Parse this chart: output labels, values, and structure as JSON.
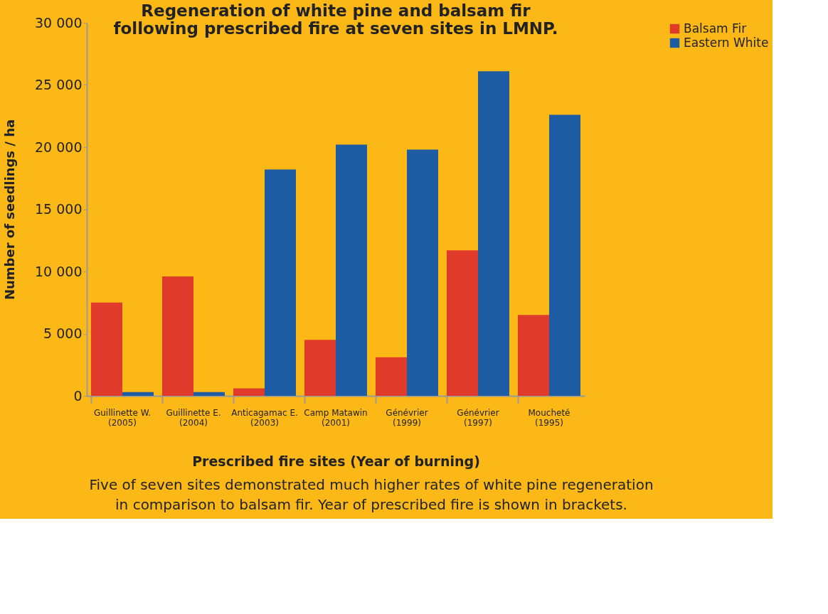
{
  "chart_data": {
    "type": "bar",
    "title": "Regeneration of white pine and balsam fir\nfollowing prescribed fire at seven sites in LMNP.",
    "xlabel": "Prescribed fire sites (Year of burning)",
    "ylabel": "Number of seedlings / ha",
    "categories": [
      "Guillinette W.\n(2005)",
      "Guillinette E.\n(2004)",
      "Anticagamac E.\n(2003)",
      "Camp Matawin\n(2001)",
      "Génévrier\n(1999)",
      "Génévrier\n(1997)",
      "Moucheté\n(1995)"
    ],
    "series": [
      {
        "name": "Balsam Fir",
        "color": "#e03a2b",
        "values": [
          7500,
          9600,
          600,
          4500,
          3100,
          11700,
          6500
        ]
      },
      {
        "name": "Eastern White",
        "color": "#1e5ca3",
        "values": [
          300,
          300,
          18200,
          20200,
          19800,
          26100,
          22600
        ]
      }
    ],
    "ylim": [
      0,
      30000
    ],
    "yticks": [
      0,
      {
        "value": 5000,
        "label": "5 000"
      },
      {
        "value": 10000,
        "label": "10 000"
      },
      {
        "value": 15000,
        "label": "15 000"
      },
      {
        "value": 20000,
        "label": "20 000"
      },
      {
        "value": 25000,
        "label": "25 000"
      },
      {
        "value": 30000,
        "label": "30 000"
      }
    ],
    "legend": "right",
    "grid": false,
    "annotations": [
      "Five of seven sites demonstrated much higher rates of white pine regeneration",
      "in comparison to balsam fir. Year of prescribed fire is shown in brackets."
    ]
  }
}
